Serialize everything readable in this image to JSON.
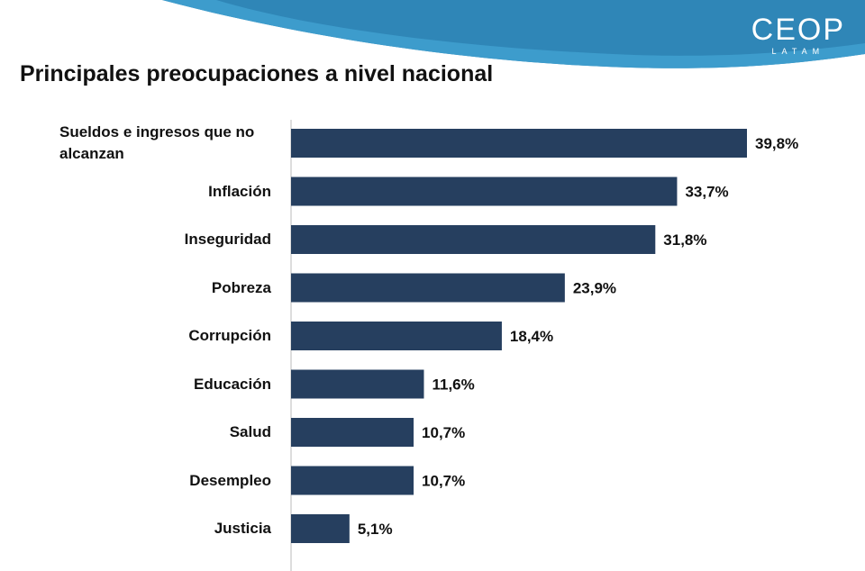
{
  "header": {
    "logo": "CEOP",
    "logo_sub": "LATAM"
  },
  "chart_data": {
    "type": "bar",
    "orientation": "horizontal",
    "title": "Principales preocupaciones a nivel nacional",
    "categories": [
      "Sueldos e ingresos que no alcanzan",
      "Inflación",
      "Inseguridad",
      "Pobreza",
      "Corrupción",
      "Educación",
      "Salud",
      "Desempleo",
      "Justicia"
    ],
    "values": [
      39.8,
      33.7,
      31.8,
      23.9,
      18.4,
      11.6,
      10.7,
      10.7,
      5.1
    ],
    "value_labels": [
      "39,8%",
      "33,7%",
      "31,8%",
      "23,9%",
      "18,4%",
      "11,6%",
      "10,7%",
      "10,7%",
      "5,1%"
    ],
    "color": "#263f5f"
  }
}
